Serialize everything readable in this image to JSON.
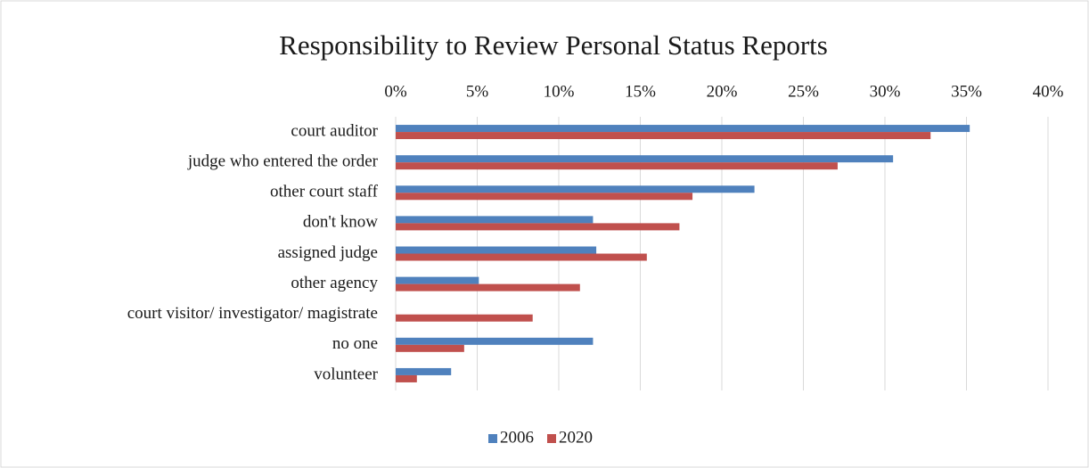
{
  "chart_data": {
    "type": "hbar",
    "title": "Responsibility to Review Personal Status Reports",
    "categories": [
      "court auditor",
      "judge who entered the order",
      "other court staff",
      "don't know",
      "assigned judge",
      "other agency",
      "court visitor/ investigator/ magistrate",
      "no one",
      "volunteer"
    ],
    "series": [
      {
        "name": "2006",
        "color": "#4f81bd",
        "values": [
          35.2,
          30.5,
          22.0,
          12.1,
          12.3,
          5.1,
          null,
          12.1,
          3.4
        ]
      },
      {
        "name": "2020",
        "color": "#c0504d",
        "values": [
          32.8,
          27.1,
          18.2,
          17.4,
          15.4,
          11.3,
          8.4,
          4.2,
          1.3
        ]
      }
    ],
    "xlim": [
      0,
      40
    ],
    "xticks": [
      {
        "value": 0,
        "label": "0%"
      },
      {
        "value": 5,
        "label": "5%"
      },
      {
        "value": 10,
        "label": "10%"
      },
      {
        "value": 15,
        "label": "15%"
      },
      {
        "value": 20,
        "label": "20%"
      },
      {
        "value": 25,
        "label": "25%"
      },
      {
        "value": 30,
        "label": "30%"
      },
      {
        "value": 35,
        "label": "35%"
      },
      {
        "value": 40,
        "label": "40%"
      }
    ],
    "grid": true,
    "legend": "bottom"
  }
}
